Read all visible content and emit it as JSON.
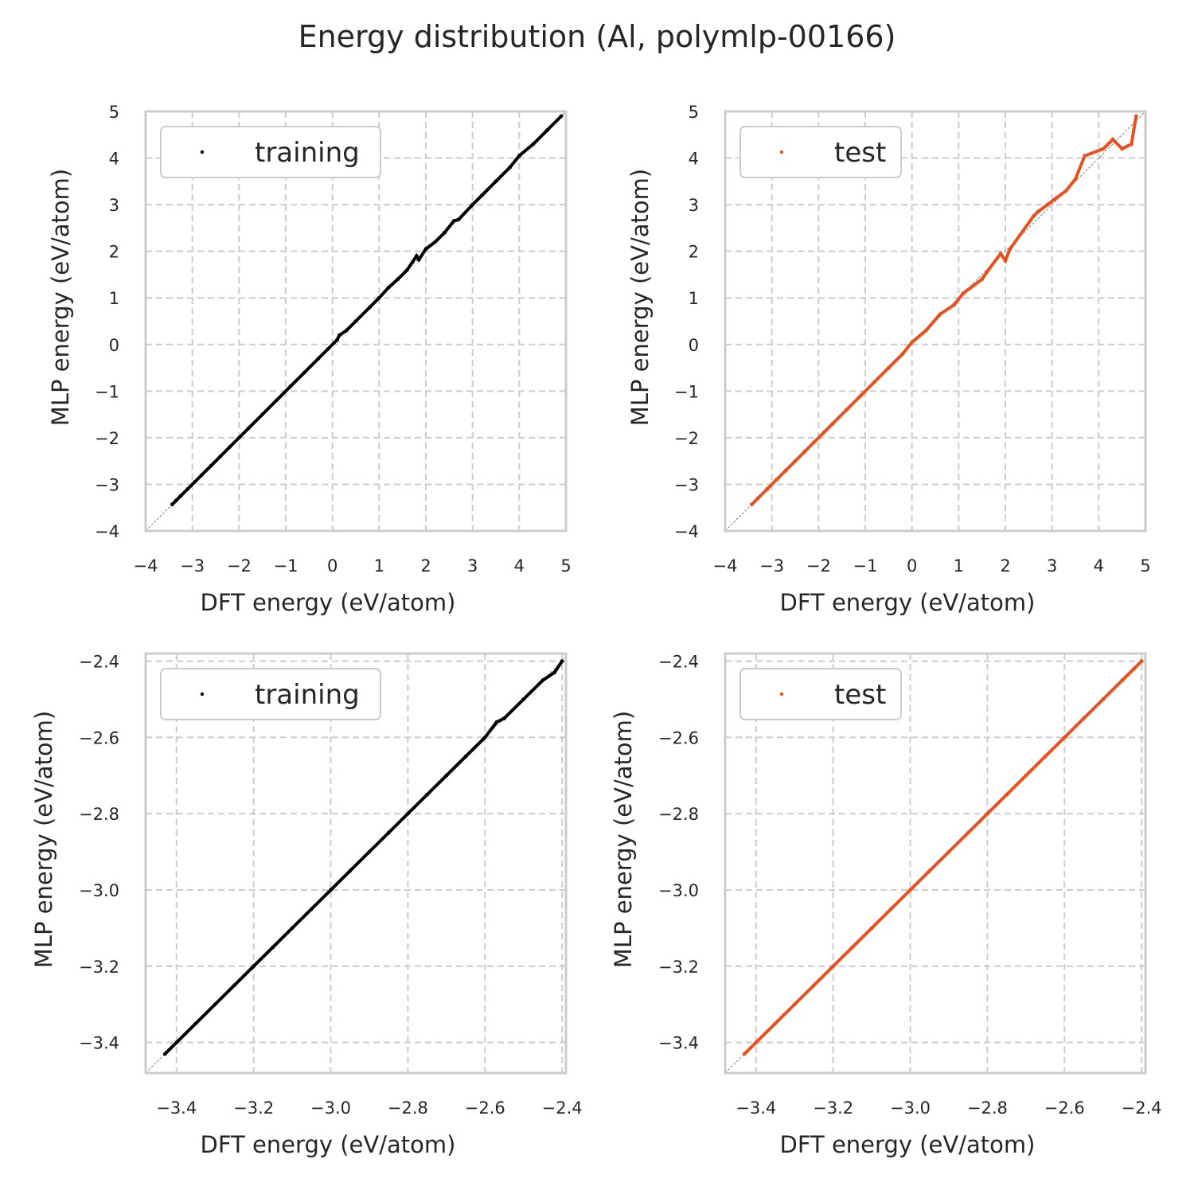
{
  "title": "Energy distribution (Al, polymlp-00166)",
  "colors": {
    "training": "#000000",
    "test": "#e8511f",
    "diagonal": "#808080",
    "grid": "#cccccc",
    "frame": "#cccccc"
  },
  "chart_data": [
    {
      "type": "scatter",
      "xlabel": "DFT energy (eV/atom)",
      "ylabel": "MLP energy (eV/atom)",
      "xlim": [
        -4,
        5
      ],
      "ylim": [
        -4,
        5
      ],
      "xticks": [
        -4,
        -3,
        -2,
        -1,
        0,
        1,
        2,
        3,
        4,
        5
      ],
      "yticks": [
        -4,
        -3,
        -2,
        -1,
        0,
        1,
        2,
        3,
        4,
        5
      ],
      "xtick_labels": [
        "−4",
        "−3",
        "−2",
        "−1",
        "0",
        "1",
        "2",
        "3",
        "4",
        "5"
      ],
      "ytick_labels": [
        "−4",
        "−3",
        "−2",
        "−1",
        "0",
        "1",
        "2",
        "3",
        "4",
        "5"
      ],
      "grid": true,
      "legend": "upper-left",
      "series": [
        {
          "name": "training",
          "color": "#000000",
          "x": [
            -3.43,
            -3.35,
            -3.25,
            -3.1,
            -2.95,
            -2.8,
            -2.6,
            -2.4,
            -2.2,
            -2.0,
            -1.8,
            -1.5,
            -1.2,
            -0.9,
            -0.6,
            -0.3,
            -0.1,
            0.1,
            0.15,
            0.3,
            0.5,
            0.8,
            1.0,
            1.2,
            1.4,
            1.6,
            1.8,
            1.85,
            2.0,
            2.2,
            2.4,
            2.6,
            2.7,
            3.0,
            3.2,
            3.5,
            3.8,
            4.0,
            4.3,
            4.6,
            4.9
          ],
          "y": [
            -3.43,
            -3.35,
            -3.25,
            -3.1,
            -2.95,
            -2.8,
            -2.6,
            -2.4,
            -2.2,
            -2.0,
            -1.8,
            -1.5,
            -1.2,
            -0.9,
            -0.6,
            -0.3,
            -0.1,
            0.1,
            0.2,
            0.3,
            0.5,
            0.8,
            1.0,
            1.22,
            1.4,
            1.6,
            1.9,
            1.82,
            2.05,
            2.2,
            2.4,
            2.65,
            2.68,
            3.0,
            3.2,
            3.5,
            3.8,
            4.05,
            4.3,
            4.6,
            4.9
          ]
        }
      ]
    },
    {
      "type": "scatter",
      "xlabel": "DFT energy (eV/atom)",
      "ylabel": "MLP energy (eV/atom)",
      "xlim": [
        -4,
        5
      ],
      "ylim": [
        -4,
        5
      ],
      "xticks": [
        -4,
        -3,
        -2,
        -1,
        0,
        1,
        2,
        3,
        4,
        5
      ],
      "yticks": [
        -4,
        -3,
        -2,
        -1,
        0,
        1,
        2,
        3,
        4,
        5
      ],
      "xtick_labels": [
        "−4",
        "−3",
        "−2",
        "−1",
        "0",
        "1",
        "2",
        "3",
        "4",
        "5"
      ],
      "ytick_labels": [
        "−4",
        "−3",
        "−2",
        "−1",
        "0",
        "1",
        "2",
        "3",
        "4",
        "5"
      ],
      "grid": true,
      "legend": "upper-left",
      "series": [
        {
          "name": "test",
          "color": "#e8511f",
          "x": [
            -3.43,
            -3.3,
            -3.1,
            -2.9,
            -2.7,
            -2.5,
            -2.3,
            -2.1,
            -1.9,
            -1.7,
            -1.4,
            -1.1,
            -0.8,
            -0.5,
            -0.2,
            0.0,
            0.3,
            0.6,
            0.9,
            1.1,
            1.5,
            1.6,
            1.9,
            2.0,
            2.1,
            2.6,
            2.7,
            2.9,
            3.1,
            3.3,
            3.5,
            3.7,
            4.1,
            4.3,
            4.5,
            4.7,
            4.8
          ],
          "y": [
            -3.43,
            -3.3,
            -3.1,
            -2.9,
            -2.7,
            -2.5,
            -2.3,
            -2.1,
            -1.9,
            -1.7,
            -1.4,
            -1.1,
            -0.8,
            -0.5,
            -0.2,
            0.05,
            0.3,
            0.65,
            0.85,
            1.1,
            1.4,
            1.55,
            1.95,
            1.8,
            2.05,
            2.75,
            2.85,
            3.0,
            3.15,
            3.3,
            3.55,
            4.05,
            4.2,
            4.4,
            4.2,
            4.3,
            4.9
          ]
        }
      ]
    },
    {
      "type": "scatter",
      "xlabel": "DFT energy (eV/atom)",
      "ylabel": "MLP energy (eV/atom)",
      "xlim": [
        -3.48,
        -2.39
      ],
      "ylim": [
        -3.48,
        -2.38
      ],
      "xticks": [
        -3.4,
        -3.2,
        -3.0,
        -2.8,
        -2.6,
        -2.4
      ],
      "yticks": [
        -3.4,
        -3.2,
        -3.0,
        -2.8,
        -2.6,
        -2.4
      ],
      "xtick_labels": [
        "−3.4",
        "−3.2",
        "−3.0",
        "−2.8",
        "−2.6",
        "−2.4"
      ],
      "ytick_labels": [
        "−3.4",
        "−3.2",
        "−3.0",
        "−2.8",
        "−2.6",
        "−2.4"
      ],
      "grid": true,
      "legend": "upper-left",
      "series": [
        {
          "name": "training",
          "color": "#000000",
          "x": [
            -3.43,
            -3.4,
            -3.35,
            -3.3,
            -3.25,
            -3.2,
            -3.15,
            -3.1,
            -3.05,
            -3.0,
            -2.95,
            -2.9,
            -2.85,
            -2.8,
            -2.75,
            -2.7,
            -2.65,
            -2.6,
            -2.57,
            -2.55,
            -2.5,
            -2.45,
            -2.42,
            -2.4
          ],
          "y": [
            -3.43,
            -3.4,
            -3.35,
            -3.3,
            -3.25,
            -3.2,
            -3.15,
            -3.1,
            -3.05,
            -3.0,
            -2.95,
            -2.9,
            -2.85,
            -2.8,
            -2.75,
            -2.7,
            -2.65,
            -2.6,
            -2.56,
            -2.55,
            -2.5,
            -2.45,
            -2.43,
            -2.4
          ]
        }
      ]
    },
    {
      "type": "scatter",
      "xlabel": "DFT energy (eV/atom)",
      "ylabel": "MLP energy (eV/atom)",
      "xlim": [
        -3.48,
        -2.39
      ],
      "ylim": [
        -3.48,
        -2.38
      ],
      "xticks": [
        -3.4,
        -3.2,
        -3.0,
        -2.8,
        -2.6,
        -2.4
      ],
      "yticks": [
        -3.4,
        -3.2,
        -3.0,
        -2.8,
        -2.6,
        -2.4
      ],
      "xtick_labels": [
        "−3.4",
        "−3.2",
        "−3.0",
        "−2.8",
        "−2.6",
        "−2.4"
      ],
      "ytick_labels": [
        "−3.4",
        "−3.2",
        "−3.0",
        "−2.8",
        "−2.6",
        "−2.4"
      ],
      "grid": true,
      "legend": "upper-left",
      "series": [
        {
          "name": "test",
          "color": "#e8511f",
          "x": [
            -3.43,
            -3.4,
            -3.35,
            -3.3,
            -3.25,
            -3.2,
            -3.15,
            -3.1,
            -3.05,
            -3.0,
            -2.95,
            -2.9,
            -2.85,
            -2.8,
            -2.75,
            -2.7,
            -2.65,
            -2.6,
            -2.55,
            -2.5,
            -2.45,
            -2.42,
            -2.4
          ],
          "y": [
            -3.43,
            -3.4,
            -3.35,
            -3.3,
            -3.25,
            -3.2,
            -3.15,
            -3.1,
            -3.05,
            -3.0,
            -2.95,
            -2.9,
            -2.85,
            -2.8,
            -2.75,
            -2.7,
            -2.65,
            -2.6,
            -2.55,
            -2.5,
            -2.45,
            -2.42,
            -2.4
          ]
        }
      ]
    }
  ]
}
